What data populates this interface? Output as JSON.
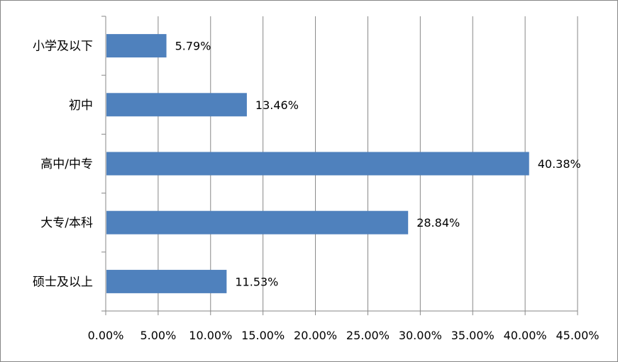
{
  "chart_data": {
    "type": "bar",
    "orientation": "horizontal",
    "categories": [
      "小学及以下",
      "初中",
      "高中/中专",
      "大专/本科",
      "硕士及以上"
    ],
    "values": [
      5.79,
      13.46,
      40.38,
      28.84,
      11.53
    ],
    "data_labels": [
      "5.79%",
      "13.46%",
      "40.38%",
      "28.84%",
      "11.53%"
    ],
    "x_ticks": [
      "0.00%",
      "5.00%",
      "10.00%",
      "15.00%",
      "20.00%",
      "25.00%",
      "30.00%",
      "35.00%",
      "40.00%",
      "45.00%"
    ],
    "xlim": [
      0,
      45
    ],
    "grid": true,
    "legend": "none",
    "bar_color": "#4f81bd",
    "grid_color": "#878787"
  }
}
